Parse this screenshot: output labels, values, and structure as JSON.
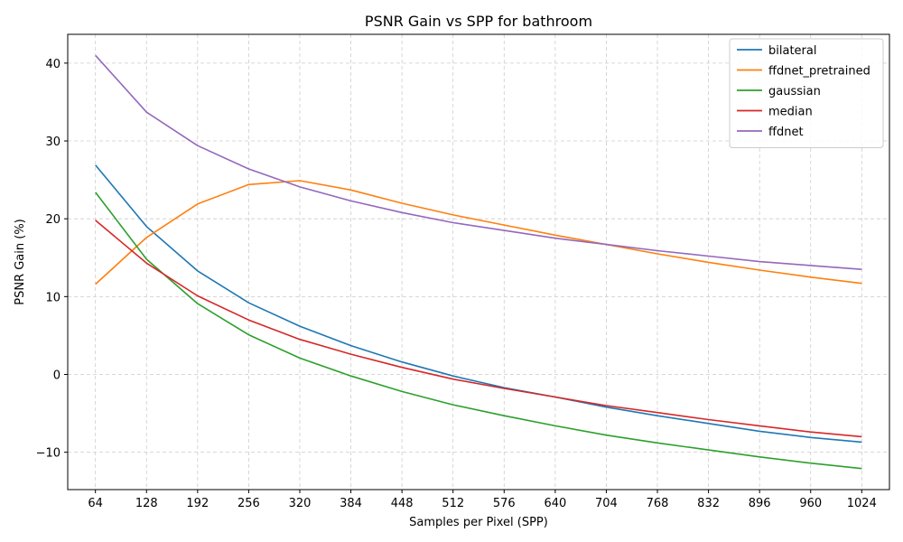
{
  "chart_data": {
    "type": "line",
    "title": "PSNR Gain vs SPP for bathroom",
    "xlabel": "Samples per Pixel (SPP)",
    "ylabel": "PSNR Gain (%)",
    "x": [
      64,
      128,
      192,
      256,
      320,
      384,
      448,
      512,
      576,
      640,
      704,
      768,
      832,
      896,
      960,
      1024
    ],
    "x_tick_labels": [
      "64",
      "128",
      "192",
      "256",
      "320",
      "384",
      "448",
      "512",
      "576",
      "640",
      "704",
      "768",
      "832",
      "896",
      "960",
      "1024"
    ],
    "y_ticks": [
      -10,
      0,
      10,
      20,
      30,
      40
    ],
    "y_tick_labels": [
      "−10",
      "0",
      "10",
      "20",
      "30",
      "40"
    ],
    "xlim": [
      29.3,
      1058.7
    ],
    "ylim": [
      -14.8,
      43.7
    ],
    "grid": true,
    "legend_position": "top-right",
    "series": [
      {
        "name": "bilateral",
        "color": "#1f77b4",
        "values": [
          26.9,
          19.0,
          13.3,
          9.2,
          6.2,
          3.7,
          1.6,
          -0.2,
          -1.7,
          -2.9,
          -4.2,
          -5.3,
          -6.3,
          -7.3,
          -8.1,
          -8.7
        ]
      },
      {
        "name": "ffdnet_pretrained",
        "color": "#ff7f0e",
        "values": [
          11.6,
          17.6,
          21.9,
          24.4,
          24.9,
          23.7,
          22.0,
          20.5,
          19.2,
          17.9,
          16.7,
          15.5,
          14.4,
          13.4,
          12.5,
          11.7
        ]
      },
      {
        "name": "gaussian",
        "color": "#2ca02c",
        "values": [
          23.4,
          14.8,
          9.1,
          5.1,
          2.1,
          -0.2,
          -2.2,
          -3.9,
          -5.3,
          -6.6,
          -7.8,
          -8.8,
          -9.7,
          -10.6,
          -11.4,
          -12.1
        ]
      },
      {
        "name": "median",
        "color": "#d62728",
        "values": [
          19.8,
          14.3,
          10.1,
          7.0,
          4.5,
          2.6,
          0.9,
          -0.6,
          -1.8,
          -2.9,
          -4.0,
          -4.9,
          -5.8,
          -6.6,
          -7.4,
          -8.0
        ]
      },
      {
        "name": "ffdnet",
        "color": "#9467bd",
        "values": [
          41.0,
          33.7,
          29.4,
          26.4,
          24.1,
          22.3,
          20.8,
          19.5,
          18.5,
          17.5,
          16.7,
          15.9,
          15.2,
          14.5,
          14.0,
          13.5
        ]
      }
    ]
  }
}
